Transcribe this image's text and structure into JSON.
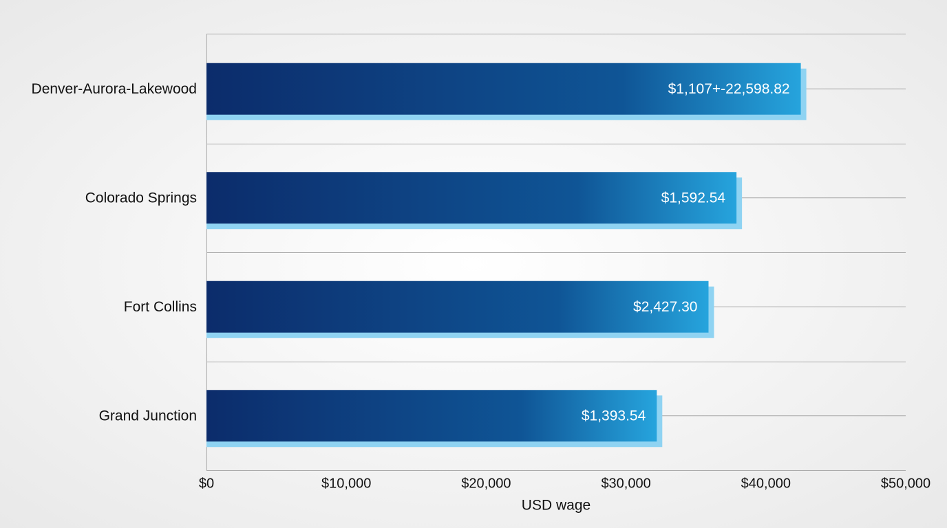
{
  "chart_data": {
    "type": "bar",
    "orientation": "horizontal",
    "categories": [
      "Denver-Aurora-Lakewood",
      "Colorado Springs",
      "Fort Collins",
      "Grand Junction"
    ],
    "values": [
      42500,
      37900,
      35900,
      32200
    ],
    "annotations": [
      "$1,107+-22,598.82",
      "$1,592.54",
      "$2,427.30",
      "$1,393.54"
    ],
    "color": "#0d2e6e",
    "xlim": [
      0,
      50000
    ],
    "xticks": [
      {
        "value": 0,
        "label": "$0"
      },
      {
        "value": 10000,
        "label": "$10,000"
      },
      {
        "value": 20000,
        "label": "$20,000"
      },
      {
        "value": 30000,
        "label": "$30,000"
      },
      {
        "value": 40000,
        "label": "$40,000"
      },
      {
        "value": 50000,
        "label": "$50,000"
      }
    ],
    "x_label": "USD wage"
  }
}
